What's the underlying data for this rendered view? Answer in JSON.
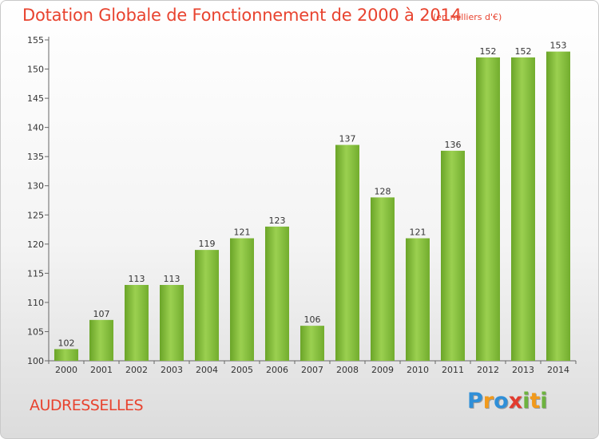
{
  "header": {
    "title": "Dotation Globale de Fonctionnement de 2000 à 2014",
    "unit": "(en milliers d'€)"
  },
  "footer": {
    "commune": "AUDRESSELLES",
    "logo": {
      "letters": [
        "P",
        "r",
        "o",
        "x",
        "i",
        "t",
        "i"
      ],
      "colors": [
        "#2f8fd8",
        "#f29a1b",
        "#2f8fd8",
        "#e23b2e",
        "#6db33f",
        "#f29a1b",
        "#6db33f"
      ]
    }
  },
  "chart_data": {
    "type": "bar",
    "title": "Dotation Globale de Fonctionnement de 2000 à 2014",
    "categories": [
      "2000",
      "2001",
      "2002",
      "2003",
      "2004",
      "2005",
      "2006",
      "2007",
      "2008",
      "2009",
      "2010",
      "2011",
      "2012",
      "2013",
      "2014"
    ],
    "values": [
      102,
      107,
      113,
      113,
      119,
      121,
      123,
      106,
      137,
      128,
      121,
      136,
      152,
      152,
      153
    ],
    "ylim": [
      100,
      155
    ],
    "yticks": [
      100,
      105,
      110,
      115,
      120,
      125,
      130,
      135,
      140,
      145,
      150,
      155
    ],
    "grid": false,
    "bar_color": "#8cc63f"
  }
}
